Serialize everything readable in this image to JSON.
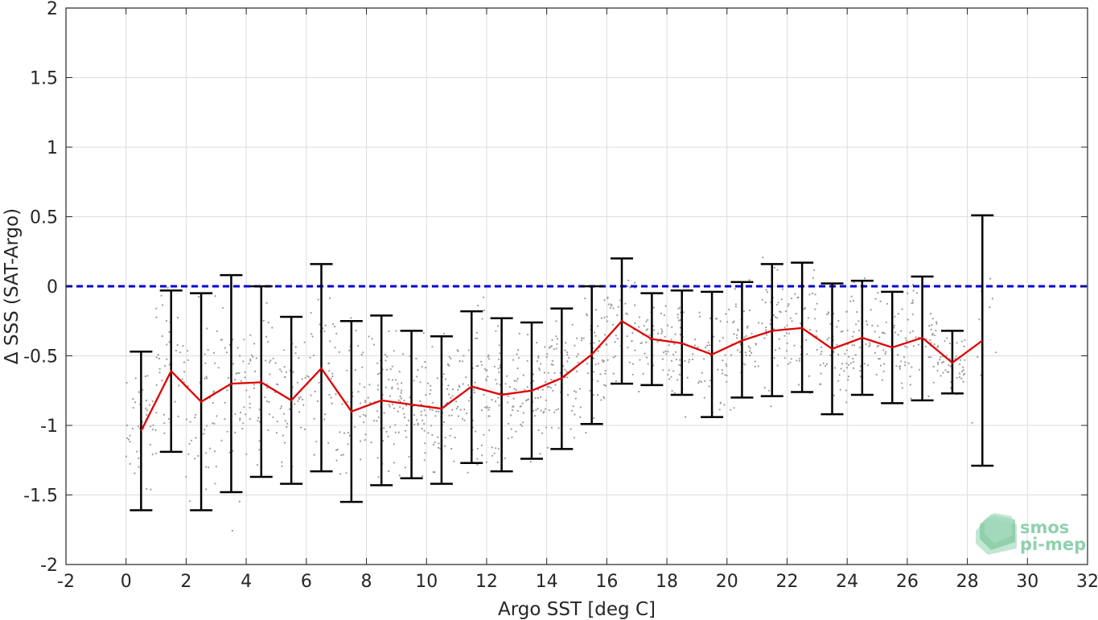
{
  "chart_data": {
    "type": "scatter",
    "xlabel": "Argo SST [deg C]",
    "ylabel": "Δ SSS (SAT-Argo)",
    "xlim": [
      -2,
      32
    ],
    "ylim": [
      -2,
      2
    ],
    "x_ticks": [
      -2,
      0,
      2,
      4,
      6,
      8,
      10,
      12,
      14,
      16,
      18,
      20,
      22,
      24,
      26,
      28,
      30,
      32
    ],
    "y_ticks": [
      -2,
      -1.5,
      -1,
      -0.5,
      0,
      0.5,
      1,
      1.5,
      2
    ],
    "x_tick_labels": [
      "-2",
      "0",
      "2",
      "4",
      "6",
      "8",
      "10",
      "12",
      "14",
      "16",
      "18",
      "20",
      "22",
      "24",
      "26",
      "28",
      "30",
      "32"
    ],
    "y_tick_labels": [
      "-2",
      "-1.5",
      "-1",
      "-0.5",
      "0",
      "0.5",
      "1",
      "1.5",
      "2"
    ],
    "grid": true,
    "reference_line": {
      "y": 0,
      "color": "#0000d0",
      "style": "dashed"
    },
    "scatter_color": "#9a9a9a",
    "mean_line_color": "#e00000",
    "errorbar_color": "#000000",
    "series": [
      {
        "type": "errorbar",
        "x": [
          0.5,
          1.5,
          2.5,
          3.5,
          4.5,
          5.5,
          6.5,
          7.5,
          8.5,
          9.5,
          10.5,
          11.5,
          12.5,
          13.5,
          14.5,
          15.5,
          16.5,
          17.5,
          18.5,
          19.5,
          20.5,
          21.5,
          22.5,
          23.5,
          24.5,
          25.5,
          26.5,
          27.5,
          28.5
        ],
        "mean": [
          -1.04,
          -0.61,
          -0.83,
          -0.7,
          -0.69,
          -0.82,
          -0.59,
          -0.9,
          -0.82,
          -0.85,
          -0.88,
          -0.72,
          -0.78,
          -0.75,
          -0.66,
          -0.49,
          -0.25,
          -0.38,
          -0.41,
          -0.49,
          -0.39,
          -0.32,
          -0.3,
          -0.45,
          -0.37,
          -0.44,
          -0.37,
          -0.55,
          -0.39
        ],
        "upper": [
          -0.47,
          -0.03,
          -0.05,
          0.08,
          0.0,
          -0.22,
          0.16,
          -0.25,
          -0.21,
          -0.32,
          -0.36,
          -0.18,
          -0.23,
          -0.26,
          -0.16,
          0.0,
          0.2,
          -0.05,
          -0.03,
          -0.04,
          0.03,
          0.16,
          0.17,
          0.02,
          0.04,
          -0.04,
          0.07,
          -0.32,
          0.51
        ],
        "lower": [
          -1.61,
          -1.19,
          -1.61,
          -1.48,
          -1.37,
          -1.42,
          -1.33,
          -1.55,
          -1.43,
          -1.38,
          -1.42,
          -1.27,
          -1.33,
          -1.24,
          -1.17,
          -0.99,
          -0.7,
          -0.71,
          -0.78,
          -0.94,
          -0.8,
          -0.79,
          -0.76,
          -0.92,
          -0.78,
          -0.84,
          -0.82,
          -0.77,
          -1.29
        ]
      }
    ]
  },
  "logo": {
    "line1": "smos",
    "line2": "pi-mep",
    "color": "#8fd1ad"
  }
}
